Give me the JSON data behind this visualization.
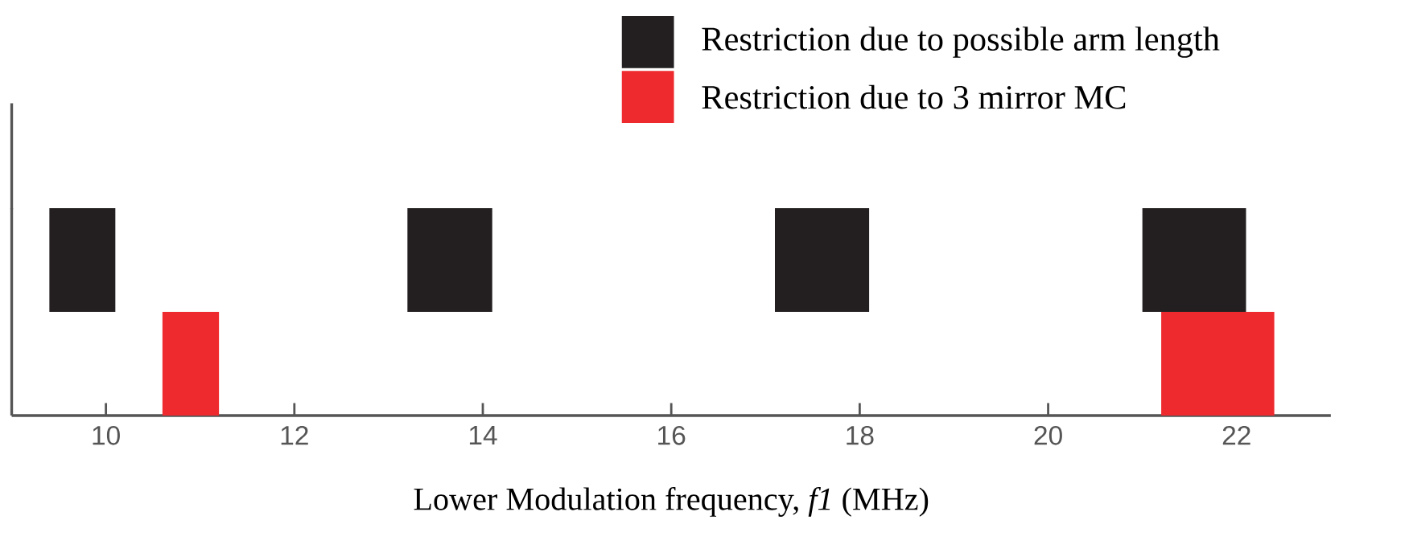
{
  "chart_data": {
    "type": "bar",
    "orientation": "horizontal",
    "xlabel": "Lower Modulation frequency, *f1* (MHz)",
    "categories": [
      null,
      null
    ],
    "series": [
      {
        "name": "Restriction due to possible arm length",
        "color": "#231f20",
        "values": [
          0.7,
          null
        ],
        "base": [
          9.4,
          null
        ]
      },
      {
        "color": "#231f20",
        "values": [
          0.9,
          null
        ],
        "base": [
          13.2,
          null
        ]
      },
      {
        "color": "#231f20",
        "values": [
          1.0,
          null
        ],
        "base": [
          17.1,
          null
        ]
      },
      {
        "color": "#231f20",
        "values": [
          1.1,
          null
        ],
        "base": [
          21.0,
          null
        ]
      },
      {
        "name": "Restriction due to 3 mirror MC",
        "color": "#ee2a2e",
        "values": [
          null,
          0.6
        ],
        "base": [
          null,
          10.6
        ]
      },
      {
        "color": "#ee2a2e",
        "values": [
          null,
          1.2
        ],
        "base": [
          null,
          21.2
        ]
      }
    ],
    "xlim": [
      9,
      23
    ],
    "xticks": [
      10,
      12,
      14,
      16,
      18,
      20,
      22
    ],
    "legend": "top right"
  }
}
